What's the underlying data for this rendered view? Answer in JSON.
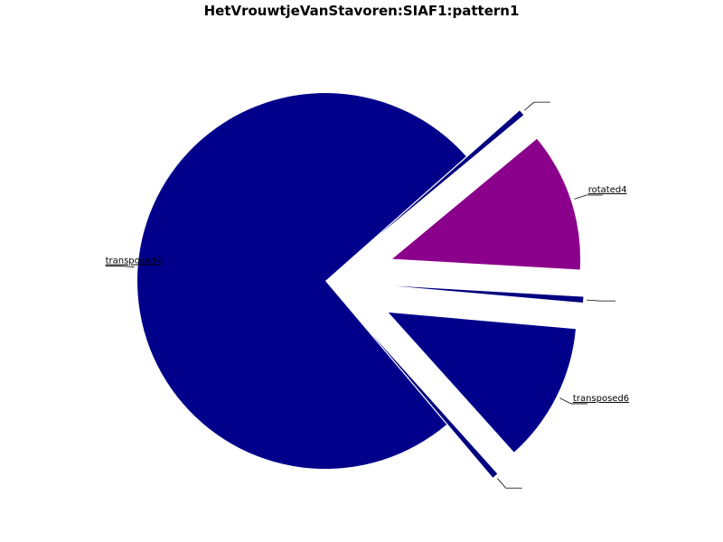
{
  "chart_data": {
    "type": "pie",
    "title": "HetVrouwtjeVanStavoren:SIAF1:pattern1",
    "slices": [
      {
        "label": "",
        "value": 0.5,
        "color": "#000080"
      },
      {
        "label": "rotated4",
        "value": 12,
        "color": "#8B008B"
      },
      {
        "label": "",
        "value": 0.5,
        "color": "#000080"
      },
      {
        "label": "transposed6",
        "value": 12,
        "color": "#00008B"
      },
      {
        "label": "",
        "value": 0.5,
        "color": "#000080"
      },
      {
        "label": "transposed4",
        "value": 75,
        "color": "#00008B"
      }
    ],
    "start_angle_deg": -41.5,
    "exploded": true,
    "legend": "none"
  }
}
